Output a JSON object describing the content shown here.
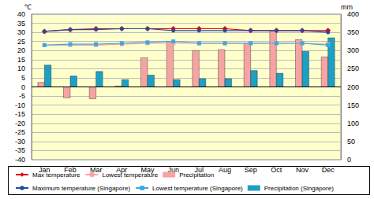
{
  "chart_data": {
    "type": "line",
    "ylabel": "℃",
    "y2label": "mm",
    "categories": [
      "Jan",
      "Feb",
      "Mar",
      "Apr",
      "May",
      "Jun",
      "Jul",
      "Aug",
      "Sep",
      "Oct",
      "Nov",
      "Dec"
    ],
    "ylim": [
      -40,
      40
    ],
    "yticks": [
      -40,
      -35,
      -30,
      -25,
      -20,
      -15,
      -10,
      -5,
      0,
      5,
      10,
      15,
      20,
      25,
      30,
      35,
      40
    ],
    "y2lim": [
      0,
      400
    ],
    "y2ticks": [
      0,
      50,
      100,
      150,
      200,
      250,
      300,
      350,
      400
    ],
    "grid": true,
    "legend": "bottom",
    "series": [
      {
        "name": "Max temperature",
        "type": "line",
        "color": "#e0001b",
        "marker": "diamond",
        "line_style": "solid",
        "values": [
          30.5,
          31.5,
          32,
          32,
          32,
          32,
          32,
          32,
          31,
          31,
          31,
          31
        ]
      },
      {
        "name": "Lowest temperature",
        "type": "line",
        "color": "#ffa0a0",
        "marker": "square",
        "line_style": "solid",
        "values": [
          23,
          23,
          23,
          23.5,
          24,
          24,
          24,
          24,
          24,
          24,
          24,
          23.5
        ]
      },
      {
        "name": "Precipitation",
        "type": "bar",
        "axis": "y2",
        "color": "#f6a3a3",
        "values": [
          212.5,
          170,
          167.5,
          202.5,
          280,
          325,
          300,
          302.5,
          320,
          355,
          330,
          282.5
        ]
      },
      {
        "name": "Maximum temperature (Singapore)",
        "type": "line",
        "color": "#1f4f9f",
        "marker": "circle",
        "line_style": "solid",
        "values": [
          30.5,
          31.5,
          31.5,
          32,
          32,
          31,
          31,
          31,
          31,
          31,
          31,
          30
        ]
      },
      {
        "name": "Lowest temperature (Singapore)",
        "type": "line",
        "color": "#3aa8e8",
        "marker": "square",
        "line_style": "solid",
        "values": [
          23,
          23.5,
          23.5,
          24,
          24.5,
          25,
          24,
          24,
          24,
          24,
          24,
          23
        ]
      },
      {
        "name": "Precipitation (Singapore)",
        "type": "bar",
        "axis": "y2",
        "color": "#1e9fc4",
        "values": [
          260,
          230,
          242.5,
          220,
          232.5,
          220,
          222.5,
          222.5,
          245,
          237.5,
          297.5,
          335
        ]
      }
    ]
  }
}
